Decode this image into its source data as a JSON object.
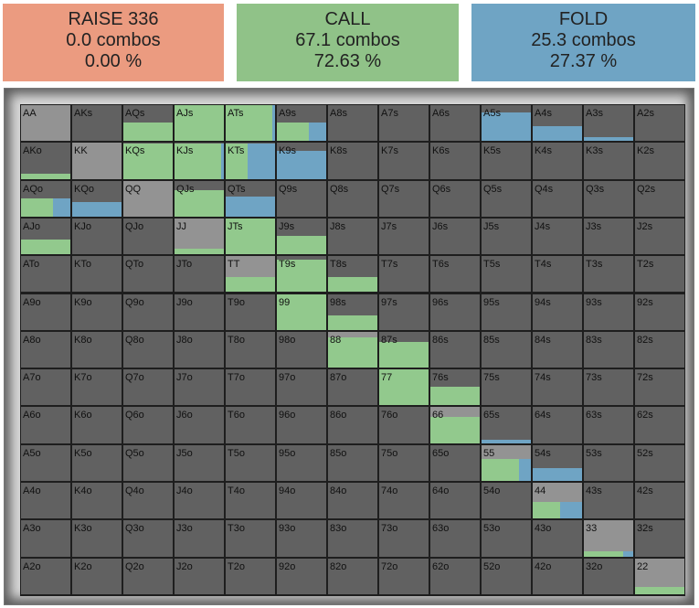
{
  "actions": [
    {
      "label": "RAISE 336",
      "combos": "0.0 combos",
      "percent": "0.00 %",
      "color": "#eb9b80"
    },
    {
      "label": "CALL",
      "combos": "67.1 combos",
      "percent": "72.63 %",
      "color": "#90c288"
    },
    {
      "label": "FOLD",
      "combos": "25.3 combos",
      "percent": "27.37 %",
      "color": "#6fa4c4"
    }
  ],
  "colors": {
    "cell": "#616161",
    "pair": "#939393",
    "call": "#92c98d",
    "fold": "#6fa4c4",
    "grid_line": "#1e1e1e"
  },
  "ranks": [
    "A",
    "K",
    "Q",
    "J",
    "T",
    "9",
    "8",
    "7",
    "6",
    "5",
    "4",
    "3",
    "2"
  ],
  "grid": {
    "labels": [
      [
        "AA",
        "AKs",
        "AQs",
        "AJs",
        "ATs",
        "A9s",
        "A8s",
        "A7s",
        "A6s",
        "A5s",
        "A4s",
        "A3s",
        "A2s"
      ],
      [
        "AKo",
        "KK",
        "KQs",
        "KJs",
        "KTs",
        "K9s",
        "K8s",
        "K7s",
        "K6s",
        "K5s",
        "K4s",
        "K3s",
        "K2s"
      ],
      [
        "AQo",
        "KQo",
        "QQ",
        "QJs",
        "QTs",
        "Q9s",
        "Q8s",
        "Q7s",
        "Q6s",
        "Q5s",
        "Q4s",
        "Q3s",
        "Q2s"
      ],
      [
        "AJo",
        "KJo",
        "QJo",
        "JJ",
        "JTs",
        "J9s",
        "J8s",
        "J7s",
        "J6s",
        "J5s",
        "J4s",
        "J3s",
        "J2s"
      ],
      [
        "ATo",
        "KTo",
        "QTo",
        "JTo",
        "TT",
        "T9s",
        "T8s",
        "T7s",
        "T6s",
        "T5s",
        "T4s",
        "T3s",
        "T2s"
      ],
      [
        "A9o",
        "K9o",
        "Q9o",
        "J9o",
        "T9o",
        "99",
        "98s",
        "97s",
        "96s",
        "95s",
        "94s",
        "93s",
        "92s"
      ],
      [
        "A8o",
        "K8o",
        "Q8o",
        "J8o",
        "T8o",
        "98o",
        "88",
        "87s",
        "86s",
        "85s",
        "84s",
        "83s",
        "82s"
      ],
      [
        "A7o",
        "K7o",
        "Q7o",
        "J7o",
        "T7o",
        "97o",
        "87o",
        "77",
        "76s",
        "75s",
        "74s",
        "73s",
        "72s"
      ],
      [
        "A6o",
        "K6o",
        "Q6o",
        "J6o",
        "T6o",
        "96o",
        "86o",
        "76o",
        "66",
        "65s",
        "64s",
        "63s",
        "62s"
      ],
      [
        "A5o",
        "K5o",
        "Q5o",
        "J5o",
        "T5o",
        "95o",
        "85o",
        "75o",
        "65o",
        "55",
        "54s",
        "53s",
        "52s"
      ],
      [
        "A4o",
        "K4o",
        "Q4o",
        "J4o",
        "T4o",
        "94o",
        "84o",
        "74o",
        "64o",
        "54o",
        "44",
        "43s",
        "42s"
      ],
      [
        "A3o",
        "K3o",
        "Q3o",
        "J3o",
        "T3o",
        "93o",
        "83o",
        "73o",
        "63o",
        "53o",
        "43o",
        "33",
        "32s"
      ],
      [
        "A2o",
        "K2o",
        "Q2o",
        "J2o",
        "T2o",
        "92o",
        "82o",
        "72o",
        "62o",
        "52o",
        "42o",
        "32o",
        "22"
      ]
    ],
    "strategy": {
      "AA": {
        "freq": 0.0,
        "call": 0.0,
        "fold": 0.0
      },
      "AKs": {
        "freq": 0.0,
        "call": 0.0,
        "fold": 0.0
      },
      "AQs": {
        "freq": 0.5,
        "call": 1.0,
        "fold": 0.0
      },
      "AJs": {
        "freq": 1.0,
        "call": 1.0,
        "fold": 0.0
      },
      "ATs": {
        "freq": 1.0,
        "call": 0.94,
        "fold": 0.06
      },
      "A9s": {
        "freq": 0.5,
        "call": 0.65,
        "fold": 0.35
      },
      "A5s": {
        "freq": 0.8,
        "call": 0.0,
        "fold": 1.0
      },
      "A4s": {
        "freq": 0.4,
        "call": 0.0,
        "fold": 1.0
      },
      "A3s": {
        "freq": 0.1,
        "call": 0.0,
        "fold": 1.0
      },
      "AKo": {
        "freq": 0.15,
        "call": 1.0,
        "fold": 0.0
      },
      "KK": {
        "freq": 0.0,
        "call": 0.0,
        "fold": 0.0
      },
      "KQs": {
        "freq": 1.0,
        "call": 1.0,
        "fold": 0.0
      },
      "KJs": {
        "freq": 1.0,
        "call": 0.95,
        "fold": 0.05
      },
      "KTs": {
        "freq": 1.0,
        "call": 0.45,
        "fold": 0.55
      },
      "K9s": {
        "freq": 0.8,
        "call": 0.0,
        "fold": 1.0
      },
      "AQo": {
        "freq": 0.5,
        "call": 0.65,
        "fold": 0.35
      },
      "KQo": {
        "freq": 0.4,
        "call": 0.0,
        "fold": 1.0
      },
      "QQ": {
        "freq": 0.0,
        "call": 0.0,
        "fold": 0.0
      },
      "QJs": {
        "freq": 0.75,
        "call": 1.0,
        "fold": 0.0
      },
      "QTs": {
        "freq": 0.55,
        "call": 0.0,
        "fold": 1.0
      },
      "AJo": {
        "freq": 0.4,
        "call": 1.0,
        "fold": 0.0
      },
      "JJ": {
        "freq": 0.15,
        "call": 1.0,
        "fold": 0.0
      },
      "JTs": {
        "freq": 1.0,
        "call": 1.0,
        "fold": 0.0
      },
      "J9s": {
        "freq": 0.5,
        "call": 1.0,
        "fold": 0.0
      },
      "TT": {
        "freq": 0.4,
        "call": 1.0,
        "fold": 0.0
      },
      "T9s": {
        "freq": 0.9,
        "call": 1.0,
        "fold": 0.0
      },
      "T8s": {
        "freq": 0.4,
        "call": 1.0,
        "fold": 0.0
      },
      "99": {
        "freq": 1.0,
        "call": 1.0,
        "fold": 0.0
      },
      "98s": {
        "freq": 0.4,
        "call": 1.0,
        "fold": 0.0
      },
      "88": {
        "freq": 0.85,
        "call": 1.0,
        "fold": 0.0
      },
      "87s": {
        "freq": 0.7,
        "call": 1.0,
        "fold": 0.0
      },
      "77": {
        "freq": 1.0,
        "call": 1.0,
        "fold": 0.0
      },
      "76s": {
        "freq": 0.5,
        "call": 1.0,
        "fold": 0.0
      },
      "66": {
        "freq": 0.75,
        "call": 1.0,
        "fold": 0.0
      },
      "65s": {
        "freq": 0.1,
        "call": 0.0,
        "fold": 1.0
      },
      "55": {
        "freq": 0.6,
        "call": 0.75,
        "fold": 0.25
      },
      "54s": {
        "freq": 0.35,
        "call": 0.0,
        "fold": 1.0
      },
      "44": {
        "freq": 0.45,
        "call": 0.55,
        "fold": 0.45
      },
      "33": {
        "freq": 0.15,
        "call": 0.8,
        "fold": 0.2
      },
      "22": {
        "freq": 0.2,
        "call": 1.0,
        "fold": 0.0
      }
    }
  }
}
